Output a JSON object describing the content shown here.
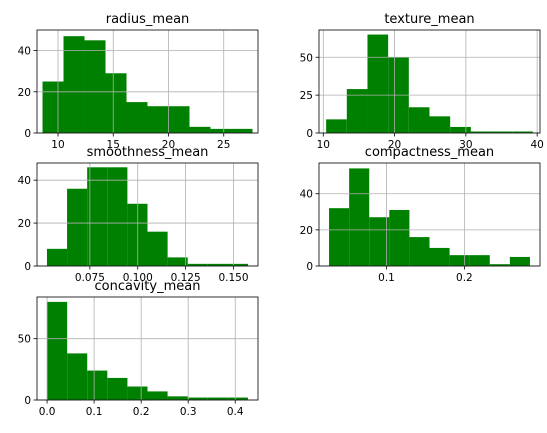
{
  "colors": {
    "bar": "#008000",
    "grid": "#b0b0b0",
    "axis": "#000000"
  },
  "chart_data": [
    {
      "type": "bar",
      "title": "radius_mean",
      "bins_x": [
        8.6,
        10.5,
        12.4,
        14.3,
        16.2,
        18.1,
        20.0,
        21.9,
        23.8,
        25.7,
        27.6
      ],
      "values": [
        25,
        47,
        45,
        29,
        15,
        13,
        13,
        3,
        2,
        2
      ],
      "xlim": [
        8.1,
        28.1
      ],
      "ylim": [
        0,
        50
      ],
      "xticks": [
        10,
        15,
        20,
        25
      ],
      "yticks": [
        0,
        20,
        40
      ],
      "grid": true
    },
    {
      "type": "bar",
      "title": "texture_mean",
      "bins_x": [
        10.4,
        13.3,
        16.2,
        19.1,
        22.0,
        24.9,
        27.8,
        30.7,
        33.6,
        36.5,
        39.4
      ],
      "values": [
        9,
        29,
        65,
        50,
        17,
        11,
        4,
        1,
        1,
        1
      ],
      "xlim": [
        9.4,
        40.4
      ],
      "ylim": [
        0,
        68
      ],
      "xticks": [
        10,
        20,
        30,
        40
      ],
      "yticks": [
        0,
        25,
        50
      ],
      "grid": true
    },
    {
      "type": "bar",
      "title": "smoothness_mean",
      "bins_x": [
        0.0526,
        0.0631,
        0.0736,
        0.0841,
        0.0946,
        0.1051,
        0.1156,
        0.1261,
        0.1366,
        0.1471,
        0.1576
      ],
      "values": [
        8,
        36,
        46,
        46,
        29,
        16,
        4,
        1,
        1,
        1
      ],
      "xlim": [
        0.0474,
        0.1628
      ],
      "ylim": [
        0,
        48
      ],
      "xticks": [
        0.075,
        0.1,
        0.125,
        0.15
      ],
      "xticklabels": [
        "0.075",
        "0.100",
        "0.125",
        "0.150"
      ],
      "yticks": [
        0,
        20,
        40
      ],
      "grid": true
    },
    {
      "type": "bar",
      "title": "compactness_mean",
      "bins_x": [
        0.0262,
        0.052,
        0.0778,
        0.1036,
        0.1294,
        0.1552,
        0.181,
        0.2068,
        0.2326,
        0.2584,
        0.2842
      ],
      "values": [
        32,
        54,
        27,
        31,
        16,
        10,
        6,
        6,
        1,
        5
      ],
      "xlim": [
        0.0133,
        0.2971
      ],
      "ylim": [
        0,
        57
      ],
      "xticks": [
        0.1,
        0.2
      ],
      "xticklabels": [
        "0.1",
        "0.2"
      ],
      "yticks": [
        0,
        20,
        40
      ],
      "grid": true
    },
    {
      "type": "bar",
      "title": "concavity_mean",
      "bins_x": [
        0.0,
        0.0427,
        0.0854,
        0.1281,
        0.1708,
        0.2135,
        0.2562,
        0.2989,
        0.3416,
        0.3843,
        0.427
      ],
      "values": [
        80,
        38,
        24,
        18,
        11,
        7,
        3,
        2,
        2,
        2
      ],
      "xlim": [
        -0.0214,
        0.4484
      ],
      "ylim": [
        0,
        84
      ],
      "xticks": [
        0.0,
        0.1,
        0.2,
        0.3,
        0.4
      ],
      "xticklabels": [
        "0.0",
        "0.1",
        "0.2",
        "0.3",
        "0.4"
      ],
      "yticks": [
        0,
        50
      ],
      "grid": true
    }
  ]
}
